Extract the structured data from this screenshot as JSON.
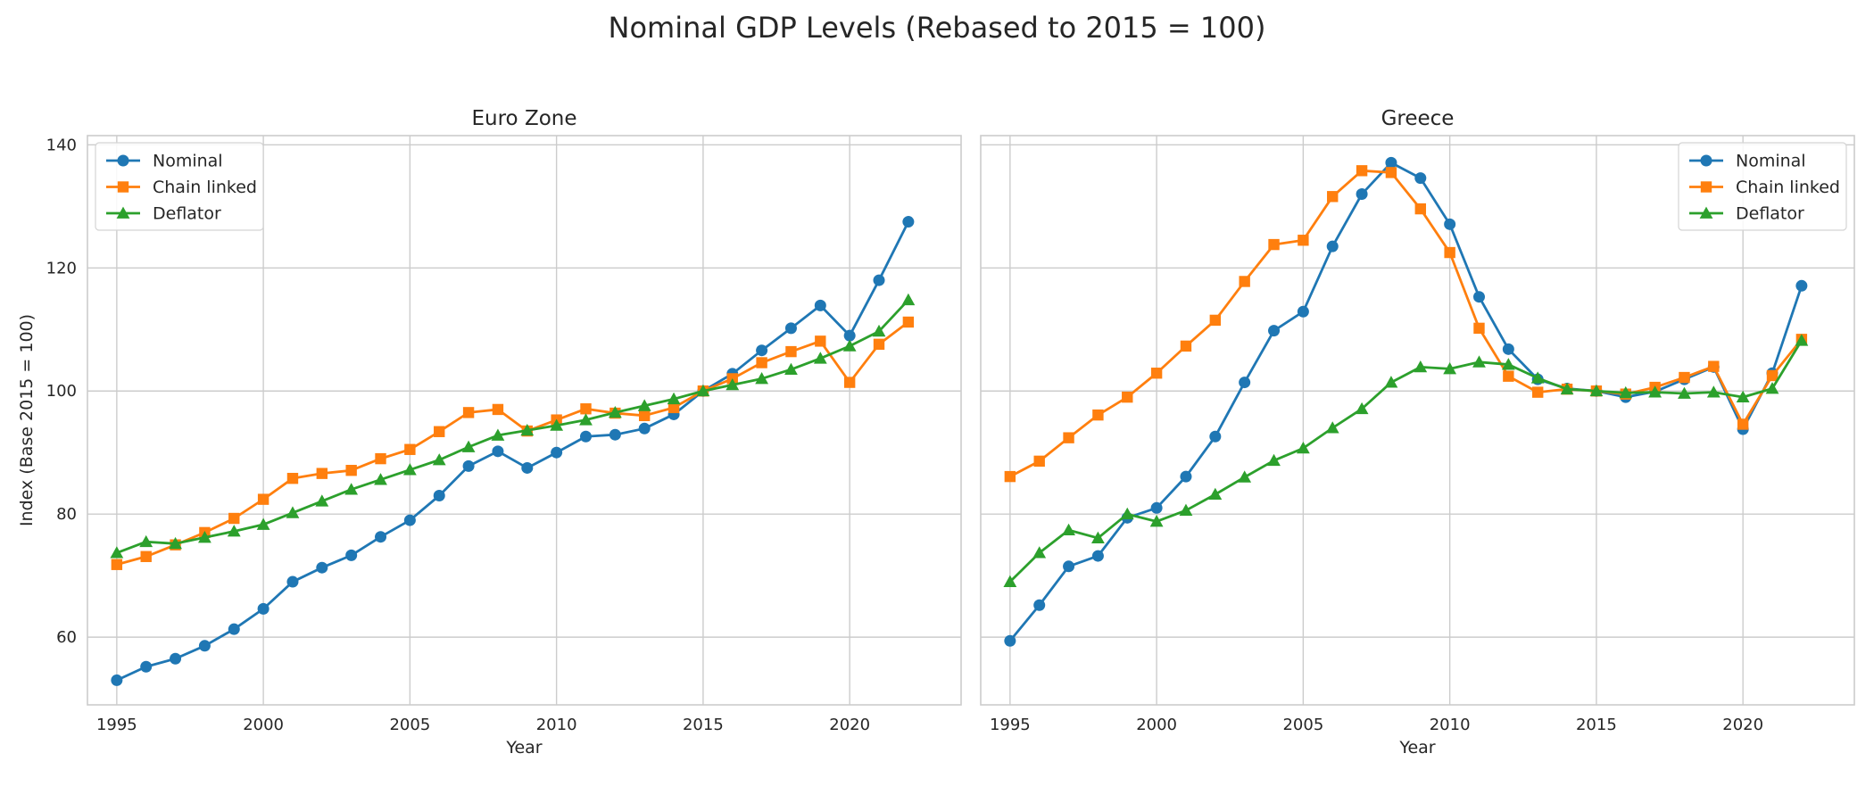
{
  "title": "Nominal GDP Levels (Rebased to 2015 = 100)",
  "colors": {
    "Nominal": "#1f77b4",
    "Chain linked": "#ff7f0e",
    "Deflator": "#2ca02c"
  },
  "chart_data": [
    {
      "type": "line",
      "title": "Euro Zone",
      "xlabel": "Year",
      "ylabel": "Index (Base 2015 = 100)",
      "xlim": [
        1994,
        2023.8
      ],
      "ylim": [
        49,
        141.5
      ],
      "xticks": [
        1995,
        2000,
        2005,
        2010,
        2015,
        2020
      ],
      "yticks": [
        60,
        80,
        100,
        120,
        140
      ],
      "grid": true,
      "legend": "top-left",
      "x": [
        1995,
        1996,
        1997,
        1998,
        1999,
        2000,
        2001,
        2002,
        2003,
        2004,
        2005,
        2006,
        2007,
        2008,
        2009,
        2010,
        2011,
        2012,
        2013,
        2014,
        2015,
        2016,
        2017,
        2018,
        2019,
        2020,
        2021,
        2022
      ],
      "series": [
        {
          "name": "Nominal",
          "marker": "circle",
          "values": [
            53.0,
            55.2,
            56.5,
            58.6,
            61.3,
            64.6,
            69.0,
            71.3,
            73.3,
            76.3,
            79.0,
            83.0,
            87.8,
            90.2,
            87.5,
            90.0,
            92.6,
            92.9,
            93.9,
            96.2,
            100.0,
            102.8,
            106.6,
            110.2,
            113.9,
            109.0,
            118.0,
            127.5
          ]
        },
        {
          "name": "Chain linked",
          "marker": "square",
          "values": [
            71.8,
            73.1,
            75.0,
            77.0,
            79.3,
            82.4,
            85.8,
            86.6,
            87.1,
            89.0,
            90.5,
            93.4,
            96.5,
            97.0,
            93.5,
            95.3,
            97.1,
            96.4,
            96.0,
            97.3,
            100.0,
            102.0,
            104.6,
            106.4,
            108.1,
            101.4,
            107.6,
            111.2
          ]
        },
        {
          "name": "Deflator",
          "marker": "triangle",
          "values": [
            73.7,
            75.5,
            75.2,
            76.2,
            77.2,
            78.3,
            80.2,
            82.1,
            84.0,
            85.6,
            87.2,
            88.8,
            90.9,
            92.8,
            93.6,
            94.4,
            95.3,
            96.5,
            97.6,
            98.7,
            100.0,
            101.0,
            102.0,
            103.5,
            105.3,
            107.3,
            109.7,
            114.8
          ]
        }
      ]
    },
    {
      "type": "line",
      "title": "Greece",
      "xlabel": "Year",
      "ylabel": "",
      "xlim": [
        1994,
        2023.8
      ],
      "ylim": [
        49,
        141.5
      ],
      "xticks": [
        1995,
        2000,
        2005,
        2010,
        2015,
        2020
      ],
      "yticks": [
        60,
        80,
        100,
        120,
        140
      ],
      "grid": true,
      "legend": "top-right",
      "x": [
        1995,
        1996,
        1997,
        1998,
        1999,
        2000,
        2001,
        2002,
        2003,
        2004,
        2005,
        2006,
        2007,
        2008,
        2009,
        2010,
        2011,
        2012,
        2013,
        2014,
        2015,
        2016,
        2017,
        2018,
        2019,
        2020,
        2021,
        2022
      ],
      "series": [
        {
          "name": "Nominal",
          "marker": "circle",
          "values": [
            59.4,
            65.2,
            71.5,
            73.2,
            79.4,
            81.0,
            86.1,
            92.6,
            101.4,
            109.8,
            112.9,
            123.5,
            132.0,
            137.1,
            134.6,
            127.1,
            115.3,
            106.8,
            101.9,
            100.4,
            100.0,
            99.0,
            99.9,
            101.9,
            103.9,
            93.8,
            102.9,
            117.1
          ]
        },
        {
          "name": "Chain linked",
          "marker": "square",
          "values": [
            86.1,
            88.6,
            92.4,
            96.1,
            99.0,
            102.9,
            107.3,
            111.5,
            117.8,
            123.8,
            124.5,
            131.6,
            135.8,
            135.5,
            129.6,
            122.5,
            110.2,
            102.4,
            99.8,
            100.3,
            100.0,
            99.5,
            100.6,
            102.2,
            104.0,
            94.6,
            102.5,
            108.4
          ]
        },
        {
          "name": "Deflator",
          "marker": "triangle",
          "values": [
            69.0,
            73.7,
            77.4,
            76.1,
            80.0,
            78.8,
            80.6,
            83.2,
            86.0,
            88.7,
            90.7,
            94.0,
            97.1,
            101.4,
            103.9,
            103.6,
            104.7,
            104.3,
            102.1,
            100.3,
            100.0,
            99.7,
            99.8,
            99.6,
            99.8,
            99.0,
            100.4,
            108.2
          ]
        }
      ]
    }
  ]
}
